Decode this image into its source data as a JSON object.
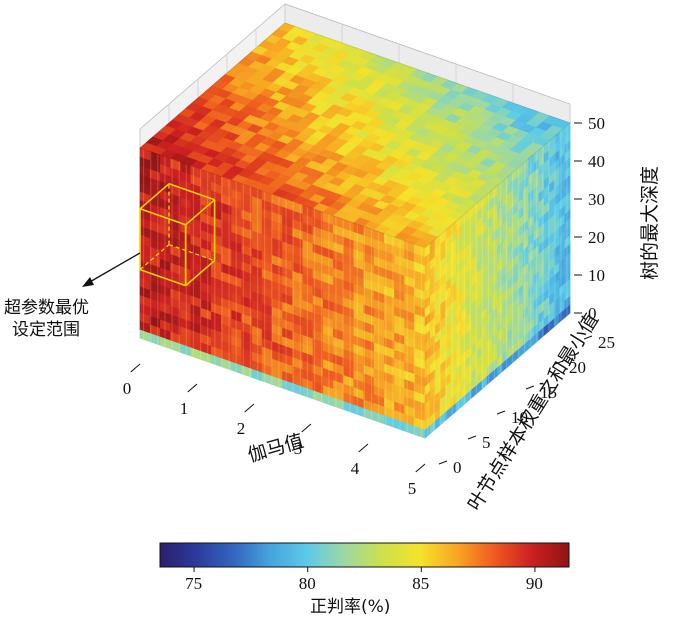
{
  "chart_data": {
    "type": "scatter3d",
    "title": "",
    "x_axis": {
      "label": "伽马值",
      "ticks": [
        0,
        1,
        2,
        3,
        4,
        5
      ],
      "range": [
        0,
        5
      ]
    },
    "y_axis": {
      "label": "叶节点样本权重之和最小值",
      "ticks": [
        0,
        5,
        10,
        15,
        20,
        25
      ],
      "range": [
        0,
        25
      ]
    },
    "z_axis": {
      "label": "树的最大深度",
      "ticks": [
        0,
        10,
        20,
        30,
        40,
        50
      ],
      "range": [
        0,
        50
      ]
    },
    "colorbar": {
      "label": "正判率(%)",
      "ticks": [
        75,
        80,
        85,
        90
      ],
      "range": [
        73.5,
        91.5
      ],
      "colors": [
        "#2c1e6e",
        "#2c3c9c",
        "#3367c0",
        "#46a6df",
        "#5fcbe6",
        "#9fd9a0",
        "#cde04a",
        "#f5e22c",
        "#f7a623",
        "#ee5a1f",
        "#cc2020",
        "#8e1414"
      ]
    },
    "annotation": {
      "text_line1": "超参数最优",
      "text_line2": "设定范围",
      "region": {
        "gamma": [
          0,
          0.8
        ],
        "min_child_weight": [
          0,
          5
        ],
        "max_depth": [
          18,
          34
        ]
      }
    },
    "accuracy_trend": {
      "best": 90.5,
      "at_max_gamma_max_weight": 81.5,
      "bottom_layer": 75
    }
  }
}
